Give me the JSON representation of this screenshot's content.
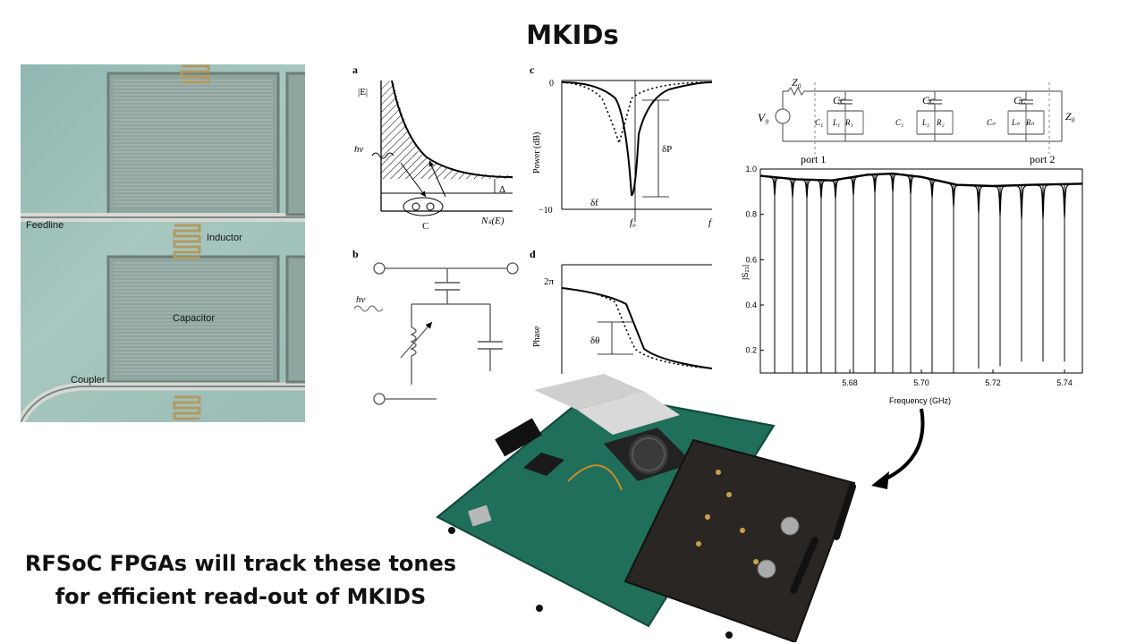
{
  "title": "MKIDs",
  "caption": {
    "line1": "RFSoC FPGAs will track these tones",
    "line2": "for efficient read-out of MKIDS"
  },
  "micrograph": {
    "labels": {
      "feedline": "Feedline",
      "inductor": "Inductor",
      "capacitor": "Capacitor",
      "coupler": "Coupler"
    }
  },
  "panels": {
    "a": {
      "letter": "a",
      "ylabel": "|E|",
      "photon": "hν",
      "gap": "Δ",
      "xlabel": "Nₛ(E)",
      "cooper": "C"
    },
    "b": {
      "letter": "b",
      "photon": "hν"
    },
    "c": {
      "letter": "c",
      "ylabel": "Power (dB)",
      "y_top": "0",
      "y_bottom": "−10",
      "dp": "δP",
      "df": "δf",
      "f0": "f₀",
      "f": "f"
    },
    "d": {
      "letter": "d",
      "ylabel": "Phase",
      "y_top": "2π",
      "dtheta": "δθ"
    }
  },
  "circuit": {
    "zg": "Z₀",
    "vg": "V₉",
    "cc1": "Cᴄ",
    "cc2": "Cᴄ",
    "cc3": "Cᴄ",
    "c1": "C₁",
    "l1": "L₁",
    "r1": "R₁",
    "c2": "C₂",
    "l2": "L₂",
    "r2": "R₂",
    "cn": "Cₙ",
    "ln": "Lₙ",
    "rn": "Rₙ",
    "zl": "Z₀",
    "port1": "port 1",
    "port2": "port 2"
  },
  "chart_data": {
    "type": "line",
    "title": "",
    "xlabel": "Frequency (GHz)",
    "ylabel": "|S₂₁|",
    "xlim": [
      5.655,
      5.745
    ],
    "ylim": [
      0.1,
      1.0
    ],
    "xticks": [
      5.68,
      5.7,
      5.72,
      5.74
    ],
    "yticks": [
      0.2,
      0.4,
      0.6,
      0.8,
      1.0
    ],
    "x_tick_labels": [
      "5.68",
      "5.70",
      "5.72",
      "5.74"
    ],
    "y_tick_labels": [
      "0.2",
      "0.4",
      "0.6",
      "0.8",
      "1.0"
    ],
    "baseline": [
      {
        "x": 5.655,
        "y": 0.97
      },
      {
        "x": 5.665,
        "y": 0.955
      },
      {
        "x": 5.675,
        "y": 0.95
      },
      {
        "x": 5.685,
        "y": 0.975
      },
      {
        "x": 5.692,
        "y": 0.98
      },
      {
        "x": 5.7,
        "y": 0.965
      },
      {
        "x": 5.71,
        "y": 0.93
      },
      {
        "x": 5.72,
        "y": 0.925
      },
      {
        "x": 5.73,
        "y": 0.93
      },
      {
        "x": 5.745,
        "y": 0.935
      }
    ],
    "resonances": [
      {
        "f": 5.659,
        "depth": 0.08
      },
      {
        "f": 5.664,
        "depth": 0.08
      },
      {
        "f": 5.668,
        "depth": 0.08
      },
      {
        "f": 5.672,
        "depth": 0.08
      },
      {
        "f": 5.676,
        "depth": 0.08
      },
      {
        "f": 5.681,
        "depth": 0.08
      },
      {
        "f": 5.687,
        "depth": 0.08
      },
      {
        "f": 5.692,
        "depth": 0.08
      },
      {
        "f": 5.697,
        "depth": 0.08
      },
      {
        "f": 5.703,
        "depth": 0.08
      },
      {
        "f": 5.709,
        "depth": 0.1
      },
      {
        "f": 5.716,
        "depth": 0.12
      },
      {
        "f": 5.722,
        "depth": 0.13
      },
      {
        "f": 5.728,
        "depth": 0.15
      },
      {
        "f": 5.734,
        "depth": 0.15
      },
      {
        "f": 5.74,
        "depth": 0.15
      }
    ]
  },
  "colors": {
    "board_green": "#1f6f5a",
    "daughter_board": "#2a2624",
    "arrow": "#000000"
  }
}
